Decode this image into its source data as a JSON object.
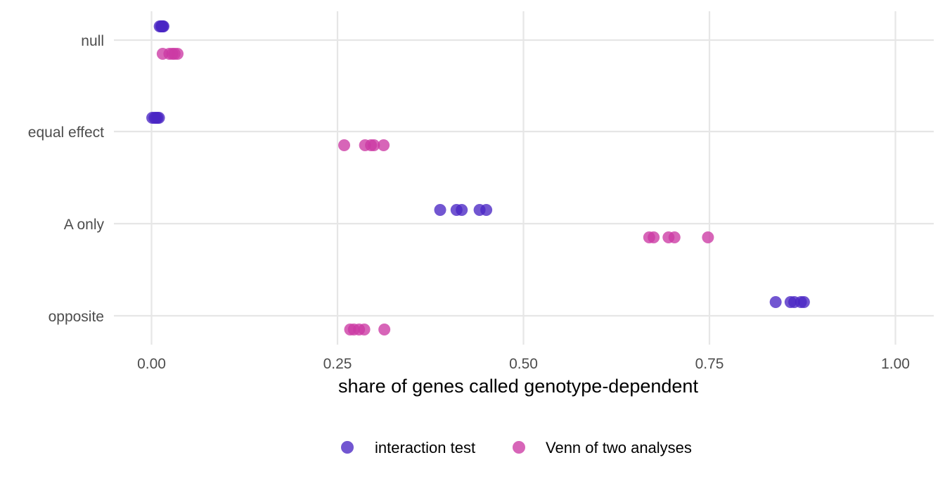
{
  "chart_data": {
    "type": "scatter",
    "title": "",
    "xlabel": "share of genes called genotype-dependent",
    "ylabel": "",
    "xlim": [
      0,
      1
    ],
    "x_ticks": [
      0,
      0.25,
      0.5,
      0.75,
      1.0
    ],
    "x_tick_labels": [
      "0.00",
      "0.25",
      "0.50",
      "0.75",
      "1.00"
    ],
    "categories": [
      "null",
      "equal effect",
      "A only",
      "opposite"
    ],
    "grid": true,
    "legend_position": "bottom",
    "series": [
      {
        "name": "interaction test",
        "color": "#4a27c4",
        "points": [
          {
            "category": "null",
            "x": 0.011
          },
          {
            "category": "null",
            "x": 0.013
          },
          {
            "category": "null",
            "x": 0.014
          },
          {
            "category": "null",
            "x": 0.015
          },
          {
            "category": "null",
            "x": 0.016
          },
          {
            "category": "equal effect",
            "x": 0.001
          },
          {
            "category": "equal effect",
            "x": 0.004
          },
          {
            "category": "equal effect",
            "x": 0.006
          },
          {
            "category": "equal effect",
            "x": 0.008
          },
          {
            "category": "equal effect",
            "x": 0.01
          },
          {
            "category": "A only",
            "x": 0.388
          },
          {
            "category": "A only",
            "x": 0.41
          },
          {
            "category": "A only",
            "x": 0.417
          },
          {
            "category": "A only",
            "x": 0.441
          },
          {
            "category": "A only",
            "x": 0.45
          },
          {
            "category": "opposite",
            "x": 0.839
          },
          {
            "category": "opposite",
            "x": 0.859
          },
          {
            "category": "opposite",
            "x": 0.864
          },
          {
            "category": "opposite",
            "x": 0.873
          },
          {
            "category": "opposite",
            "x": 0.877
          }
        ]
      },
      {
        "name": "Venn of two analyses",
        "color": "#cc3aa4",
        "points": [
          {
            "category": "null",
            "x": 0.015
          },
          {
            "category": "null",
            "x": 0.024
          },
          {
            "category": "null",
            "x": 0.028
          },
          {
            "category": "null",
            "x": 0.031
          },
          {
            "category": "null",
            "x": 0.035
          },
          {
            "category": "equal effect",
            "x": 0.259
          },
          {
            "category": "equal effect",
            "x": 0.287
          },
          {
            "category": "equal effect",
            "x": 0.295
          },
          {
            "category": "equal effect",
            "x": 0.299
          },
          {
            "category": "equal effect",
            "x": 0.312
          },
          {
            "category": "A only",
            "x": 0.669
          },
          {
            "category": "A only",
            "x": 0.675
          },
          {
            "category": "A only",
            "x": 0.695
          },
          {
            "category": "A only",
            "x": 0.703
          },
          {
            "category": "A only",
            "x": 0.748
          },
          {
            "category": "opposite",
            "x": 0.267
          },
          {
            "category": "opposite",
            "x": 0.272
          },
          {
            "category": "opposite",
            "x": 0.279
          },
          {
            "category": "opposite",
            "x": 0.286
          },
          {
            "category": "opposite",
            "x": 0.313
          }
        ]
      }
    ]
  }
}
